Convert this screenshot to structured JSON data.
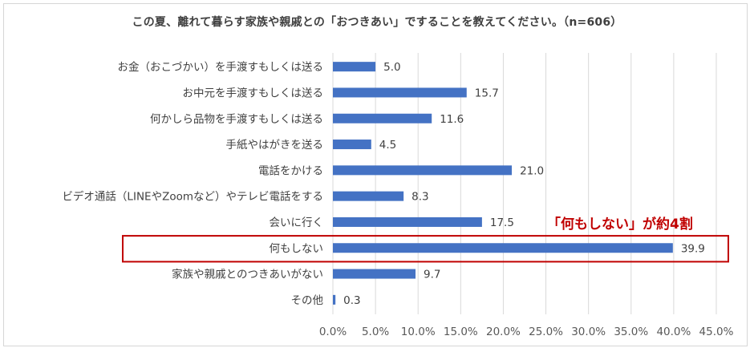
{
  "chart_data": {
    "type": "bar",
    "orientation": "horizontal",
    "title": "この夏、離れて暮らす家族や親戚との「おつきあい」ですることを教えてください。（n=606）",
    "categories": [
      "お金（おこづかい）を手渡すもしくは送る",
      "お中元を手渡すもしくは送る",
      "何かしら品物を手渡すもしくは送る",
      "手紙やはがきを送る",
      "電話をかける",
      "ビデオ通話（LINEやZoomなど）やテレビ電話をする",
      "会いに行く",
      "何もしない",
      "家族や親戚とのつきあいがない",
      "その他"
    ],
    "values": [
      5.0,
      15.7,
      11.6,
      4.5,
      21.0,
      8.3,
      17.5,
      39.9,
      9.7,
      0.3
    ],
    "value_labels": [
      "5.0",
      "15.7",
      "11.6",
      "4.5",
      "21.0",
      "8.3",
      "17.5",
      "39.9",
      "9.7",
      "0.3"
    ],
    "xlim": [
      0,
      45
    ],
    "xticks": [
      "0.0%",
      "5.0%",
      "10.0%",
      "15.0%",
      "20.0%",
      "25.0%",
      "30.0%",
      "35.0%",
      "40.0%",
      "45.0%"
    ],
    "grid": true,
    "bar_color": "#4472c4",
    "annotation": {
      "text": "「何もしない」が約4割",
      "highlight_category": "何もしない",
      "color": "#c00000"
    }
  }
}
